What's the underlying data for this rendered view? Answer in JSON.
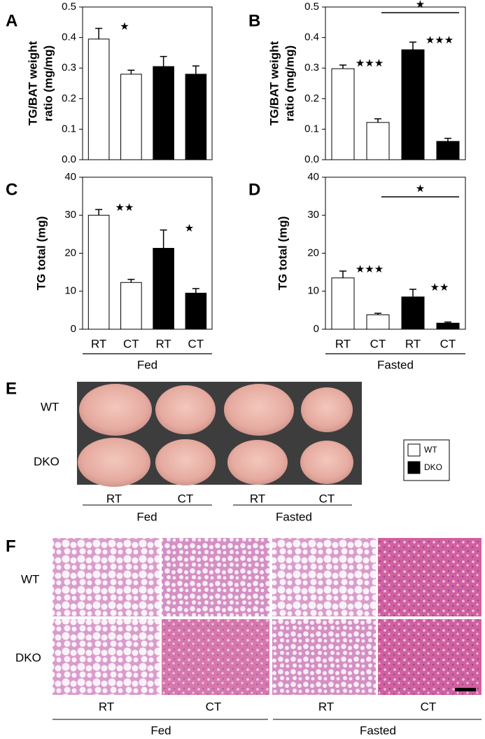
{
  "chart_data": [
    {
      "type": "bar",
      "panel": "A",
      "ylabel": [
        "TG/BAT weight",
        "ratio (mg/mg)"
      ],
      "categories": [
        null,
        null,
        null,
        null
      ],
      "values": [
        0.395,
        0.28,
        0.305,
        0.28
      ],
      "errors": [
        0.035,
        0.013,
        0.033,
        0.027
      ],
      "colors": [
        "#ffffff",
        "#ffffff",
        "#000000",
        "#000000"
      ],
      "stars": [
        "★",
        null,
        null,
        null
      ],
      "ylim": [
        0,
        0.5
      ],
      "yticks": [
        {
          "value": 0,
          "label": "0.0"
        },
        0.1,
        0.2,
        0.3,
        0.4,
        0.5
      ]
    },
    {
      "type": "bar",
      "panel": "B",
      "ylabel": [
        "TG/BAT weight",
        "ratio (mg/mg)"
      ],
      "categories": [
        null,
        null,
        null,
        null
      ],
      "values": [
        0.298,
        0.122,
        0.36,
        0.06
      ],
      "errors": [
        0.012,
        0.012,
        0.025,
        0.01
      ],
      "colors": [
        "#ffffff",
        "#ffffff",
        "#000000",
        "#000000"
      ],
      "stars": [
        "★★★",
        null,
        "★★★",
        null
      ],
      "bracket": {
        "from": 1,
        "to": 3,
        "text": "★"
      },
      "ylim": [
        0,
        0.5
      ],
      "yticks": [
        {
          "value": 0,
          "label": "0.0"
        },
        0.1,
        0.2,
        0.3,
        0.4,
        0.5
      ]
    },
    {
      "type": "bar",
      "panel": "C",
      "ylabel": "TG total (mg)",
      "categories": [
        "RT",
        "CT",
        "RT",
        "CT"
      ],
      "group": "Fed",
      "values": [
        30,
        12.3,
        21.3,
        9.5
      ],
      "errors": [
        1.5,
        0.8,
        4.8,
        1.2
      ],
      "colors": [
        "#ffffff",
        "#ffffff",
        "#000000",
        "#000000"
      ],
      "stars": [
        "★★",
        null,
        "★",
        null
      ],
      "ylim": [
        0,
        40
      ],
      "yticks": [
        0,
        10,
        20,
        30,
        40
      ]
    },
    {
      "type": "bar",
      "panel": "D",
      "ylabel": "TG total (mg)",
      "categories": [
        "RT",
        "CT",
        "RT",
        "CT"
      ],
      "group": "Fasted",
      "values": [
        13.5,
        3.8,
        8.5,
        1.6
      ],
      "errors": [
        1.8,
        0.4,
        2,
        0.3
      ],
      "colors": [
        "#ffffff",
        "#ffffff",
        "#000000",
        "#000000"
      ],
      "stars": [
        "★★★",
        null,
        "★★",
        null
      ],
      "bracket": {
        "from": 1,
        "to": 3,
        "text": "★"
      },
      "ylim": [
        0,
        40
      ],
      "yticks": [
        0,
        10,
        20,
        30,
        40
      ]
    }
  ],
  "legend": {
    "series": [
      {
        "name": "WT",
        "color": "#ffffff"
      },
      {
        "name": "DKO",
        "color": "#000000"
      }
    ]
  },
  "panel_e": {
    "label": "E",
    "rows": [
      "WT",
      "DKO"
    ],
    "columns": [
      "RT",
      "CT",
      "RT",
      "CT"
    ],
    "groups": [
      "Fed",
      "Fasted"
    ]
  },
  "panel_f": {
    "label": "F",
    "rows": [
      "WT",
      "DKO"
    ],
    "columns": [
      "RT",
      "CT",
      "RT",
      "CT"
    ],
    "groups": [
      "Fed",
      "Fasted"
    ]
  }
}
